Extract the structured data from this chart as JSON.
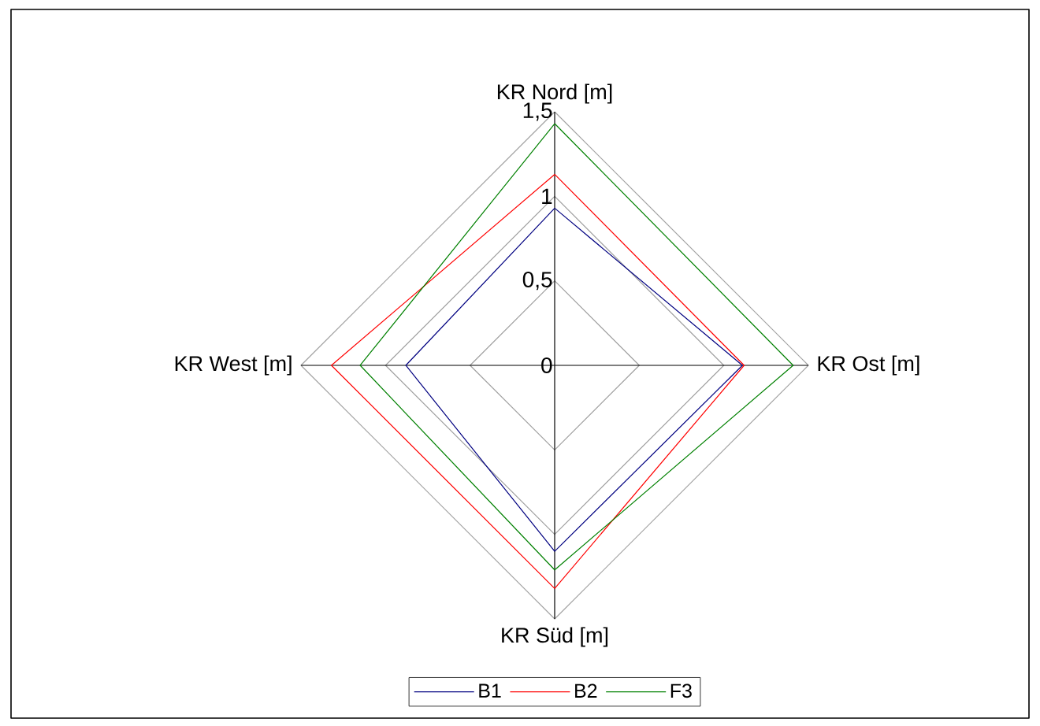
{
  "chart_data": {
    "type": "radar",
    "categories": [
      "KR Nord [m]",
      "KR Ost [m]",
      "KR Süd [m]",
      "KR West [m]"
    ],
    "series": [
      {
        "name": "B1",
        "color": "#000080",
        "values": [
          0.93,
          1.11,
          1.1,
          0.88
        ]
      },
      {
        "name": "B2",
        "color": "#ff0000",
        "values": [
          1.13,
          1.12,
          1.32,
          1.32
        ]
      },
      {
        "name": "F3",
        "color": "#008000",
        "values": [
          1.43,
          1.41,
          1.21,
          1.15
        ]
      }
    ],
    "ylim": [
      0,
      1.5
    ],
    "yticks": [
      0,
      {
        "value": 0.5,
        "label": "0,5"
      },
      1,
      {
        "value": 1.5,
        "label": "1,5"
      }
    ],
    "grid": true,
    "legend": "bottom"
  }
}
